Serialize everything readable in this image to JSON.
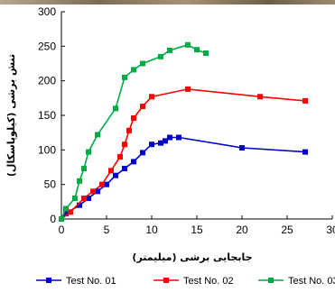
{
  "chart_data": {
    "type": "line",
    "xlabel": "جابجایی برشی (میلیمتر)",
    "ylabel": "تنش برشی (کیلوپاسکال)",
    "xlim": [
      0,
      30
    ],
    "ylim": [
      0,
      300
    ],
    "x_ticks": [
      0,
      5,
      10,
      15,
      20,
      25,
      30
    ],
    "y_ticks": [
      0,
      50,
      100,
      150,
      200,
      250,
      300
    ],
    "grid": false,
    "legend_position": "bottom",
    "series": [
      {
        "name": "Test No. 01",
        "color": "#0000cc",
        "marker": "square",
        "points": [
          [
            0,
            0
          ],
          [
            0.5,
            8
          ],
          [
            2,
            20
          ],
          [
            3,
            30
          ],
          [
            4,
            40
          ],
          [
            5,
            50
          ],
          [
            6,
            63
          ],
          [
            7,
            73
          ],
          [
            8,
            83
          ],
          [
            9,
            96
          ],
          [
            10,
            108
          ],
          [
            11,
            110
          ],
          [
            11.5,
            113
          ],
          [
            12,
            118
          ],
          [
            13,
            118
          ],
          [
            20,
            103
          ],
          [
            27,
            97
          ]
        ]
      },
      {
        "name": "Test No. 02",
        "color": "#ff0000",
        "marker": "square",
        "points": [
          [
            0,
            0
          ],
          [
            1,
            10
          ],
          [
            2.5,
            30
          ],
          [
            3.5,
            40
          ],
          [
            4.5,
            50
          ],
          [
            5.5,
            70
          ],
          [
            6.5,
            90
          ],
          [
            7,
            108
          ],
          [
            7.5,
            128
          ],
          [
            8,
            146
          ],
          [
            9,
            163
          ],
          [
            10,
            177
          ],
          [
            14,
            188
          ],
          [
            22,
            177
          ],
          [
            27,
            171
          ]
        ]
      },
      {
        "name": "Test No. 03",
        "color": "#00aa44",
        "marker": "square",
        "points": [
          [
            0,
            0
          ],
          [
            0.5,
            15
          ],
          [
            1.5,
            30
          ],
          [
            2,
            55
          ],
          [
            2.5,
            73
          ],
          [
            3,
            97
          ],
          [
            4,
            122
          ],
          [
            6,
            160
          ],
          [
            7,
            205
          ],
          [
            8,
            216
          ],
          [
            9,
            225
          ],
          [
            11,
            235
          ],
          [
            12,
            244
          ],
          [
            14,
            252
          ],
          [
            15,
            245
          ],
          [
            16,
            240
          ]
        ]
      }
    ]
  }
}
